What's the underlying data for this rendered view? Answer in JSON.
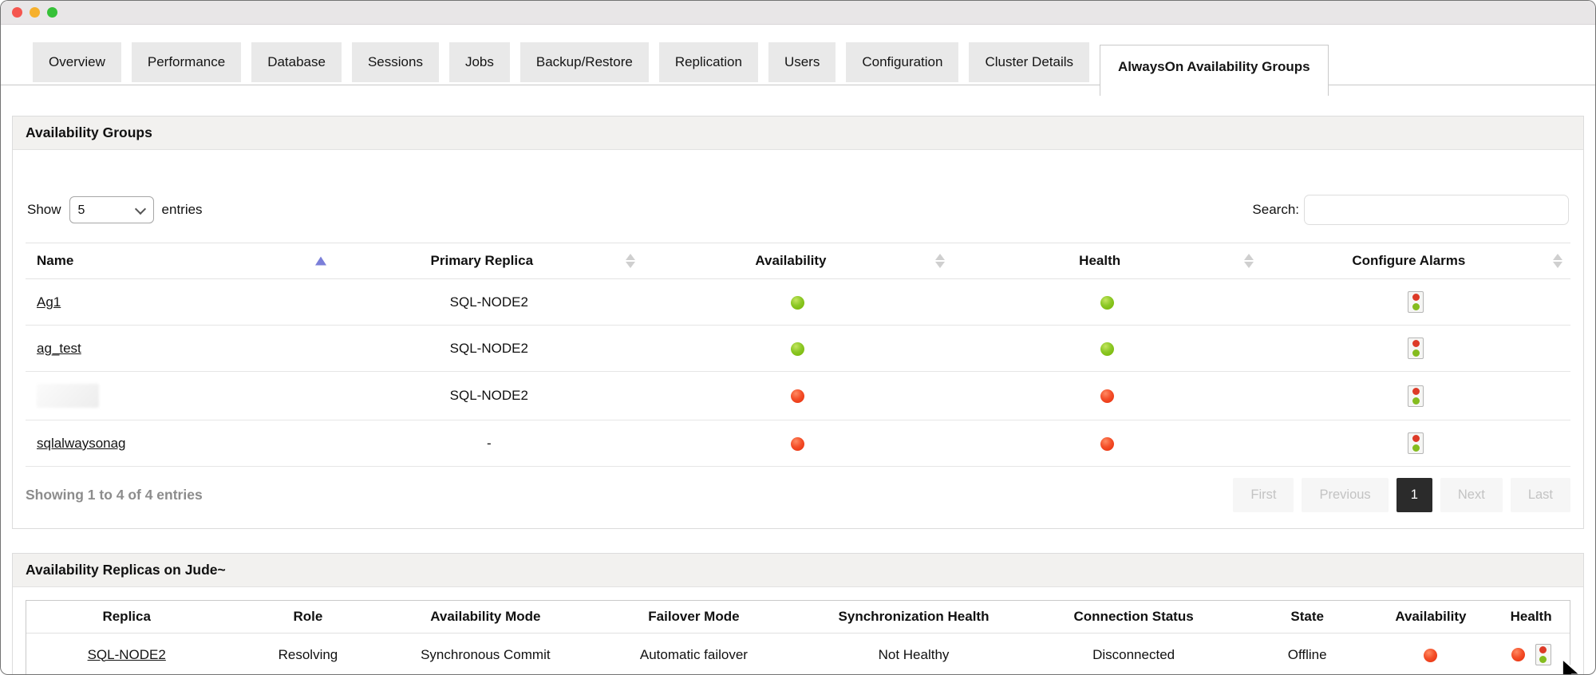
{
  "window": {
    "controls": [
      {
        "name": "close",
        "color": "#f5554e"
      },
      {
        "name": "minimize",
        "color": "#f6b02c"
      },
      {
        "name": "zoom",
        "color": "#36c138"
      }
    ]
  },
  "tabs": {
    "items": [
      "Overview",
      "Performance",
      "Database",
      "Sessions",
      "Jobs",
      "Backup/Restore",
      "Replication",
      "Users",
      "Configuration",
      "Cluster Details",
      "AlwaysOn Availability Groups"
    ],
    "active": "AlwaysOn Availability Groups"
  },
  "groups_panel": {
    "title": "Availability Groups",
    "show_label": "Show",
    "entries_label": "entries",
    "page_size_value": "5",
    "search_label": "Search:",
    "search_value": "",
    "table": {
      "columns": [
        {
          "label": "Name",
          "sort": "asc",
          "align": "left"
        },
        {
          "label": "Primary Replica",
          "sort": "both",
          "align": "center"
        },
        {
          "label": "Availability",
          "sort": "both",
          "align": "center"
        },
        {
          "label": "Health",
          "sort": "both",
          "align": "center"
        },
        {
          "label": "Configure Alarms",
          "sort": "both",
          "align": "center"
        }
      ],
      "rows": [
        {
          "name": "Ag1",
          "redacted": false,
          "primary_replica": "SQL-NODE2",
          "availability": "up",
          "health": "up",
          "configure_alarms": "traffic-light-icon"
        },
        {
          "name": "ag_test",
          "redacted": false,
          "primary_replica": "SQL-NODE2",
          "availability": "up",
          "health": "up",
          "configure_alarms": "traffic-light-icon"
        },
        {
          "name": "",
          "redacted": true,
          "primary_replica": "SQL-NODE2",
          "availability": "down",
          "health": "down",
          "configure_alarms": "traffic-light-icon"
        },
        {
          "name": "sqlalwaysonag",
          "redacted": false,
          "primary_replica": "-",
          "availability": "down",
          "health": "down",
          "configure_alarms": "traffic-light-icon"
        }
      ]
    },
    "summary": "Showing 1 to 4 of 4 entries",
    "pagination": {
      "items": [
        "First",
        "Previous",
        "1",
        "Next",
        "Last"
      ],
      "active": "1",
      "disabled": [
        "First",
        "Previous",
        "Next",
        "Last"
      ]
    }
  },
  "replicas_panel": {
    "title": "Availability Replicas on Jude~",
    "table": {
      "columns": [
        "Replica",
        "Role",
        "Availability Mode",
        "Failover Mode",
        "Synchronization Health",
        "Connection Status",
        "State",
        "Availability",
        "Health"
      ],
      "rows": [
        {
          "replica": "SQL-NODE2",
          "role": "Resolving",
          "availability_mode": "Synchronous Commit",
          "failover_mode": "Automatic failover",
          "synchronization_health": "Not Healthy",
          "connection_status": "Disconnected",
          "state": "Offline",
          "availability": "down",
          "health": "down",
          "health_icon": "traffic-light-icon"
        }
      ]
    }
  },
  "colors": {
    "status_up": "#84c225",
    "status_down": "#f23b16",
    "sort_active": "#7b7fd9",
    "active_page_bg": "#2b2b2b",
    "panel_header_bg": "#f2f1ef",
    "tab_bg": "#e9e9e9"
  }
}
